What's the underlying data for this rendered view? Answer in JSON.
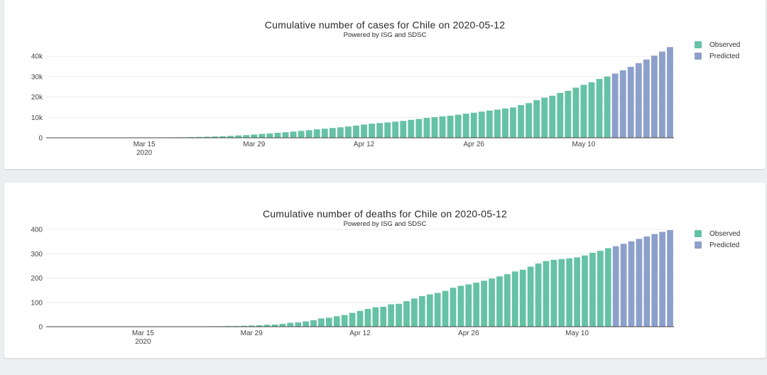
{
  "chart_data": [
    {
      "type": "bar",
      "title": "Cumulative number of cases for Chile on 2020-05-12",
      "subtitle": "Powered by ISG and SDSC",
      "xlabel": "",
      "ylabel": "",
      "start_date": "2020-03-03",
      "x_ticks": [
        {
          "label": "Mar 15",
          "sub": "2020",
          "date": "2020-03-15"
        },
        {
          "label": "Mar 29",
          "date": "2020-03-29"
        },
        {
          "label": "Apr 12",
          "date": "2020-04-12"
        },
        {
          "label": "Apr 26",
          "date": "2020-04-26"
        },
        {
          "label": "May 10",
          "date": "2020-05-10"
        }
      ],
      "y_ticks": [
        0,
        10000,
        20000,
        30000,
        40000
      ],
      "y_tick_labels": [
        "0",
        "10k",
        "20k",
        "30k",
        "40k"
      ],
      "ylim": [
        0,
        42500
      ],
      "legend_position": "top-right",
      "series": [
        {
          "name": "Observed",
          "color": "#66c2a5",
          "values": [
            1,
            2,
            4,
            5,
            6,
            8,
            10,
            13,
            17,
            23,
            33,
            43,
            61,
            75,
            155,
            201,
            238,
            250,
            342,
            434,
            537,
            632,
            746,
            922,
            1142,
            1306,
            1610,
            1909,
            2139,
            2449,
            2738,
            3031,
            3404,
            3737,
            4161,
            4471,
            4815,
            5116,
            5546,
            5972,
            6501,
            6927,
            7213,
            7525,
            7917,
            8273,
            8807,
            9252,
            9730,
            10088,
            10507,
            10832,
            11296,
            11812,
            12306,
            12858,
            13331,
            13813,
            14365,
            14885,
            16023,
            17008,
            18435,
            19663,
            20643,
            22016,
            23048,
            24581,
            25972,
            27219,
            28866,
            30063
          ]
        },
        {
          "name": "Predicted",
          "color": "#8da0cb",
          "values": [
            31500,
            33100,
            34800,
            36600,
            38400,
            40300,
            42300,
            44500
          ]
        }
      ]
    },
    {
      "type": "bar",
      "title": "Cumulative number of deaths for Chile on 2020-05-12",
      "subtitle": "Powered by ISG and SDSC",
      "xlabel": "",
      "ylabel": "",
      "start_date": "2020-03-03",
      "x_ticks": [
        {
          "label": "Mar 15",
          "sub": "2020",
          "date": "2020-03-15"
        },
        {
          "label": "Mar 29",
          "date": "2020-03-29"
        },
        {
          "label": "Apr 12",
          "date": "2020-04-12"
        },
        {
          "label": "Apr 26",
          "date": "2020-04-26"
        },
        {
          "label": "May 10",
          "date": "2020-05-10"
        }
      ],
      "y_ticks": [
        0,
        100,
        200,
        300,
        400
      ],
      "y_tick_labels": [
        "0",
        "100",
        "200",
        "300",
        "400"
      ],
      "ylim": [
        0,
        400
      ],
      "legend_position": "top-right",
      "series": [
        {
          "name": "Observed",
          "color": "#66c2a5",
          "values": [
            0,
            0,
            0,
            0,
            0,
            0,
            0,
            0,
            0,
            0,
            0,
            0,
            0,
            0,
            0,
            0,
            0,
            0,
            0,
            1,
            1,
            2,
            2,
            3,
            3,
            4,
            5,
            6,
            8,
            9,
            12,
            16,
            18,
            22,
            27,
            34,
            37,
            43,
            48,
            57,
            65,
            73,
            80,
            82,
            92,
            94,
            105,
            116,
            126,
            133,
            139,
            147,
            160,
            168,
            174,
            181,
            189,
            198,
            207,
            216,
            227,
            234,
            247,
            260,
            270,
            275,
            278,
            281,
            285,
            293,
            304,
            312,
            323
          ]
        },
        {
          "name": "Predicted",
          "color": "#8da0cb",
          "values": [
            331,
            341,
            351,
            361,
            371,
            381,
            390,
            397
          ]
        }
      ]
    }
  ]
}
